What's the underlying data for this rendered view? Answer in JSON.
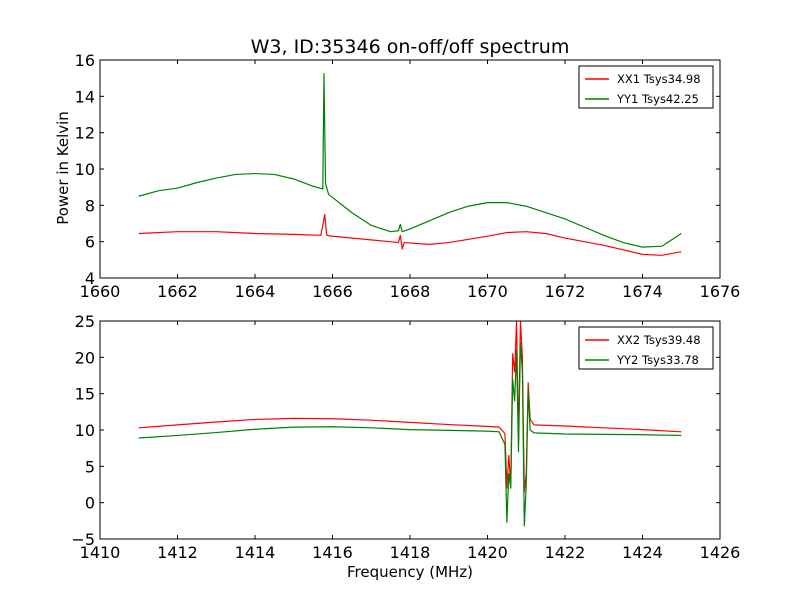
{
  "chart_data": [
    {
      "type": "line",
      "title": "W3, ID:35346 on-off/off spectrum",
      "xlabel": "",
      "ylabel": "Power in Kelvin",
      "xlim": [
        1660,
        1676
      ],
      "ylim": [
        4,
        16
      ],
      "xticks": [
        1660,
        1662,
        1664,
        1666,
        1668,
        1670,
        1672,
        1674,
        1676
      ],
      "yticks": [
        4,
        6,
        8,
        10,
        12,
        14,
        16
      ],
      "grid": false,
      "legend_position": "top-right",
      "series": [
        {
          "name": "XX1 Tsys34.98",
          "color": "#ff0000",
          "points": [
            [
              1661.0,
              6.45
            ],
            [
              1662.0,
              6.55
            ],
            [
              1663.0,
              6.55
            ],
            [
              1664.0,
              6.45
            ],
            [
              1665.0,
              6.4
            ],
            [
              1665.7,
              6.35
            ],
            [
              1665.8,
              7.5
            ],
            [
              1665.85,
              6.35
            ],
            [
              1666.0,
              6.3
            ],
            [
              1667.0,
              6.1
            ],
            [
              1667.7,
              5.95
            ],
            [
              1667.75,
              6.35
            ],
            [
              1667.8,
              5.6
            ],
            [
              1667.85,
              5.95
            ],
            [
              1668.5,
              5.85
            ],
            [
              1669.0,
              5.95
            ],
            [
              1670.0,
              6.3
            ],
            [
              1670.5,
              6.5
            ],
            [
              1671.0,
              6.55
            ],
            [
              1671.5,
              6.45
            ],
            [
              1672.0,
              6.2
            ],
            [
              1673.0,
              5.8
            ],
            [
              1673.5,
              5.55
            ],
            [
              1674.0,
              5.3
            ],
            [
              1674.5,
              5.25
            ],
            [
              1675.0,
              5.45
            ]
          ]
        },
        {
          "name": "YY1 Tsys42.25",
          "color": "#008000",
          "points": [
            [
              1661.0,
              8.5
            ],
            [
              1661.5,
              8.8
            ],
            [
              1662.0,
              8.95
            ],
            [
              1662.5,
              9.25
            ],
            [
              1663.0,
              9.5
            ],
            [
              1663.5,
              9.7
            ],
            [
              1664.0,
              9.75
            ],
            [
              1664.5,
              9.7
            ],
            [
              1665.0,
              9.45
            ],
            [
              1665.5,
              9.05
            ],
            [
              1665.75,
              8.9
            ],
            [
              1665.78,
              15.25
            ],
            [
              1665.82,
              9.2
            ],
            [
              1665.9,
              8.6
            ],
            [
              1666.5,
              7.6
            ],
            [
              1667.0,
              6.9
            ],
            [
              1667.5,
              6.55
            ],
            [
              1667.7,
              6.6
            ],
            [
              1667.75,
              6.95
            ],
            [
              1667.8,
              6.55
            ],
            [
              1668.0,
              6.7
            ],
            [
              1668.5,
              7.15
            ],
            [
              1669.0,
              7.6
            ],
            [
              1669.5,
              7.95
            ],
            [
              1670.0,
              8.15
            ],
            [
              1670.5,
              8.15
            ],
            [
              1671.0,
              7.95
            ],
            [
              1671.5,
              7.6
            ],
            [
              1672.0,
              7.25
            ],
            [
              1672.5,
              6.8
            ],
            [
              1673.0,
              6.35
            ],
            [
              1673.5,
              5.95
            ],
            [
              1674.0,
              5.7
            ],
            [
              1674.5,
              5.75
            ],
            [
              1675.0,
              6.45
            ]
          ]
        }
      ]
    },
    {
      "type": "line",
      "title": "",
      "xlabel": "Frequency (MHz)",
      "ylabel": "",
      "xlim": [
        1410,
        1426
      ],
      "ylim": [
        -5,
        25
      ],
      "xticks": [
        1410,
        1412,
        1414,
        1416,
        1418,
        1420,
        1422,
        1424,
        1426
      ],
      "yticks": [
        -5,
        0,
        5,
        10,
        15,
        20,
        25
      ],
      "grid": false,
      "legend_position": "top-right",
      "series": [
        {
          "name": "XX2 Tsys39.48",
          "color": "#ff0000",
          "points": [
            [
              1411.0,
              10.3
            ],
            [
              1412.0,
              10.7
            ],
            [
              1413.0,
              11.1
            ],
            [
              1414.0,
              11.45
            ],
            [
              1415.0,
              11.6
            ],
            [
              1416.0,
              11.55
            ],
            [
              1417.0,
              11.35
            ],
            [
              1418.0,
              11.05
            ],
            [
              1419.0,
              10.75
            ],
            [
              1420.0,
              10.5
            ],
            [
              1420.3,
              10.4
            ],
            [
              1420.45,
              9.5
            ],
            [
              1420.5,
              2.0
            ],
            [
              1420.55,
              6.5
            ],
            [
              1420.6,
              2.5
            ],
            [
              1420.65,
              20.5
            ],
            [
              1420.7,
              18.0
            ],
            [
              1420.75,
              25.0
            ],
            [
              1420.8,
              8.5
            ],
            [
              1420.85,
              25.0
            ],
            [
              1420.9,
              20.0
            ],
            [
              1420.95,
              1.5
            ],
            [
              1421.0,
              4.0
            ],
            [
              1421.05,
              16.5
            ],
            [
              1421.1,
              11.5
            ],
            [
              1421.2,
              10.7
            ],
            [
              1422.0,
              10.55
            ],
            [
              1423.0,
              10.3
            ],
            [
              1424.0,
              10.05
            ],
            [
              1425.0,
              9.75
            ]
          ]
        },
        {
          "name": "YY2 Tsys33.78",
          "color": "#008000",
          "points": [
            [
              1411.0,
              8.9
            ],
            [
              1412.0,
              9.25
            ],
            [
              1413.0,
              9.65
            ],
            [
              1414.0,
              10.1
            ],
            [
              1415.0,
              10.4
            ],
            [
              1416.0,
              10.45
            ],
            [
              1417.0,
              10.3
            ],
            [
              1418.0,
              10.05
            ],
            [
              1419.0,
              9.95
            ],
            [
              1420.0,
              9.85
            ],
            [
              1420.3,
              9.75
            ],
            [
              1420.45,
              8.0
            ],
            [
              1420.5,
              -2.7
            ],
            [
              1420.55,
              4.0
            ],
            [
              1420.6,
              2.0
            ],
            [
              1420.65,
              17.0
            ],
            [
              1420.7,
              14.0
            ],
            [
              1420.75,
              21.0
            ],
            [
              1420.8,
              7.0
            ],
            [
              1420.85,
              22.0
            ],
            [
              1420.9,
              18.0
            ],
            [
              1420.95,
              -3.2
            ],
            [
              1421.0,
              2.5
            ],
            [
              1421.05,
              15.5
            ],
            [
              1421.1,
              10.0
            ],
            [
              1421.2,
              9.6
            ],
            [
              1422.0,
              9.45
            ],
            [
              1423.0,
              9.4
            ],
            [
              1424.0,
              9.35
            ],
            [
              1425.0,
              9.25
            ]
          ]
        }
      ]
    }
  ]
}
